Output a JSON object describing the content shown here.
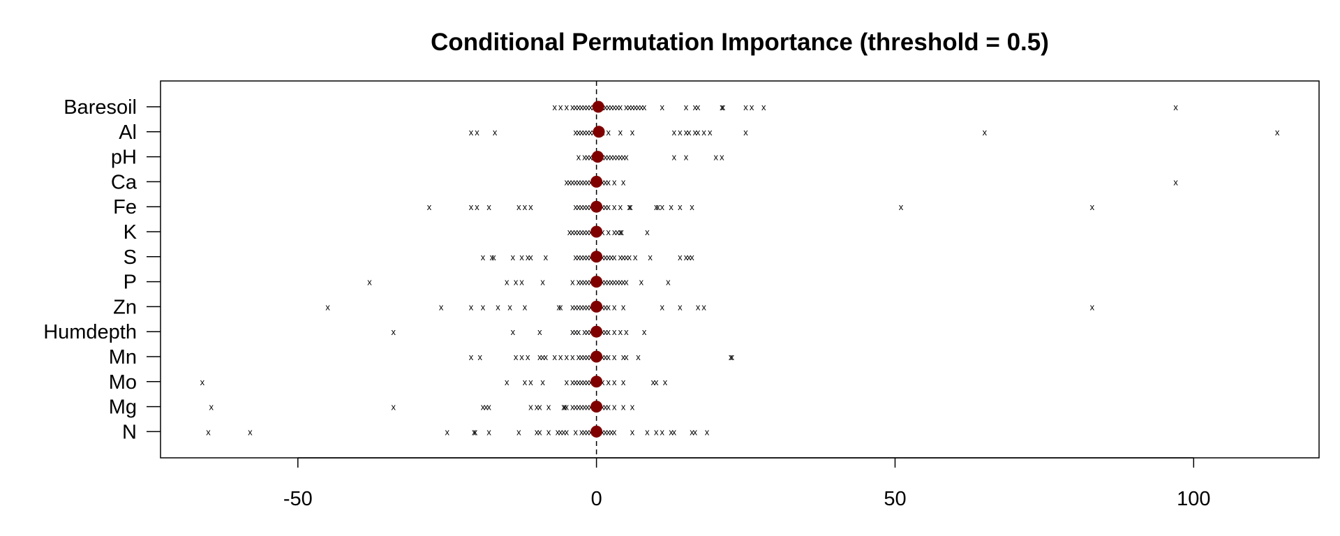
{
  "chart_data": {
    "type": "scatter",
    "title": "Conditional Permutation Importance (threshold = 0.5)",
    "xlabel": "",
    "ylabel": "",
    "xlim": [
      -73,
      121
    ],
    "xticks": [
      -50,
      0,
      50,
      100
    ],
    "xtick_labels": [
      "-50",
      "0",
      "50",
      "100"
    ],
    "reference_line_x": 0,
    "point_marker": "x",
    "mean_marker_color": "#800000",
    "variables": [
      {
        "name": "Baresoil",
        "mean": 0.3,
        "points": [
          -7,
          -6,
          -5,
          -4,
          -3.5,
          -3,
          -2.5,
          -2,
          -1.5,
          -1,
          -0.5,
          0.5,
          1,
          1.5,
          2,
          2.5,
          3,
          3.5,
          4,
          5,
          5.5,
          6,
          6.5,
          7,
          7.5,
          8,
          11,
          15,
          16.5,
          17,
          21,
          21.2,
          25,
          26,
          28,
          97
        ]
      },
      {
        "name": "Al",
        "mean": 0.4,
        "points": [
          -21,
          -20,
          -17,
          -3.5,
          -3,
          -2.5,
          -2,
          -1.5,
          -1,
          -0.5,
          0.5,
          1,
          2,
          4,
          6,
          13,
          14,
          15,
          15.5,
          16.5,
          17,
          18,
          19,
          25,
          65,
          114
        ]
      },
      {
        "name": "pH",
        "mean": 0.2,
        "points": [
          -3,
          -2,
          -1.5,
          -1,
          -0.5,
          0.5,
          1,
          1.5,
          2,
          2.5,
          3,
          3.5,
          4,
          4.5,
          5,
          13,
          15,
          20,
          21
        ]
      },
      {
        "name": "Ca",
        "mean": 0,
        "points": [
          -5,
          -4.5,
          -4,
          -3.5,
          -3,
          -2.5,
          -2,
          -1.5,
          -1,
          -0.5,
          0.5,
          1,
          1.5,
          2,
          3,
          4.5,
          97
        ]
      },
      {
        "name": "Fe",
        "mean": 0,
        "points": [
          -28,
          -21,
          -20,
          -18,
          -13,
          -12,
          -11,
          -3.5,
          -3,
          -2.5,
          -2,
          -1.5,
          -1,
          -0.5,
          0.5,
          1,
          1.5,
          2,
          3,
          4,
          5.5,
          5.7,
          10,
          10.3,
          11,
          12.5,
          14,
          16,
          51,
          83
        ]
      },
      {
        "name": "K",
        "mean": 0,
        "points": [
          -4.5,
          -4,
          -3.5,
          -3,
          -2.5,
          -2,
          -1.5,
          -1,
          -0.5,
          0.5,
          1,
          2,
          3,
          3.5,
          4,
          4.2,
          8.5
        ]
      },
      {
        "name": "S",
        "mean": 0,
        "points": [
          -19,
          -17.5,
          -17.2,
          -14,
          -12.5,
          -11.5,
          -11,
          -8.5,
          -3.5,
          -3,
          -2.5,
          -2,
          -1.5,
          -1,
          -0.5,
          0.5,
          1,
          1.5,
          2,
          2.5,
          3,
          4,
          4.5,
          5,
          5.5,
          6.5,
          9,
          14,
          15,
          15.5,
          16
        ]
      },
      {
        "name": "P",
        "mean": 0,
        "points": [
          -38,
          -15,
          -13.5,
          -12.5,
          -9,
          -4,
          -3,
          -2.5,
          -2,
          -1.5,
          -1,
          -0.5,
          0.5,
          1,
          1.5,
          2,
          2.5,
          3,
          3.5,
          4,
          4.5,
          5,
          7.5,
          12
        ]
      },
      {
        "name": "Zn",
        "mean": 0,
        "points": [
          -45,
          -26,
          -21,
          -19,
          -16.5,
          -14.5,
          -12,
          -6.3,
          -6,
          -4,
          -3.5,
          -3,
          -2.5,
          -2,
          -1.5,
          -1,
          -0.5,
          0.5,
          1,
          1.5,
          2,
          3,
          4.5,
          11,
          14,
          17,
          18,
          83
        ]
      },
      {
        "name": "Humdepth",
        "mean": 0,
        "points": [
          -34,
          -14,
          -9.5,
          -4,
          -3.5,
          -3,
          -2,
          -1.5,
          -1,
          -0.5,
          0.5,
          1,
          1.5,
          2,
          3,
          4,
          5,
          8
        ]
      },
      {
        "name": "Mn",
        "mean": 0,
        "points": [
          -21,
          -19.5,
          -13.5,
          -12.5,
          -11.5,
          -9.5,
          -9,
          -8.5,
          -7,
          -6,
          -5,
          -4,
          -3,
          -2.5,
          -2,
          -1.5,
          -1,
          -0.5,
          0.5,
          1,
          1.5,
          2,
          3,
          4.5,
          5,
          7,
          22.5,
          22.7
        ]
      },
      {
        "name": "Mo",
        "mean": 0,
        "points": [
          -66,
          -15,
          -12,
          -11,
          -9,
          -5,
          -4,
          -3.5,
          -3,
          -2.5,
          -2,
          -1.5,
          -1,
          1,
          2,
          3,
          4.5,
          9.5,
          10,
          11.5
        ]
      },
      {
        "name": "Mg",
        "mean": 0,
        "points": [
          -64.5,
          -34,
          -19,
          -18.5,
          -18,
          -11,
          -10,
          -9.5,
          -8,
          -5.5,
          -5.3,
          -5,
          -4,
          -3.5,
          -3,
          -2.5,
          -2,
          -1.5,
          -1,
          -0.5,
          0.5,
          1,
          1.5,
          2,
          3,
          4.5,
          6
        ]
      },
      {
        "name": "N",
        "mean": 0,
        "points": [
          -65,
          -58,
          -25,
          -20.5,
          -20.3,
          -18,
          -13,
          -10,
          -9.5,
          -8,
          -6.5,
          -6,
          -5.5,
          -5,
          -3.5,
          -2.5,
          -2,
          -1.5,
          -1,
          -0.5,
          0.5,
          1,
          1.5,
          2,
          2.5,
          3,
          6,
          8.5,
          10,
          11,
          12.5,
          13,
          16,
          16.5,
          18.5
        ]
      }
    ]
  }
}
